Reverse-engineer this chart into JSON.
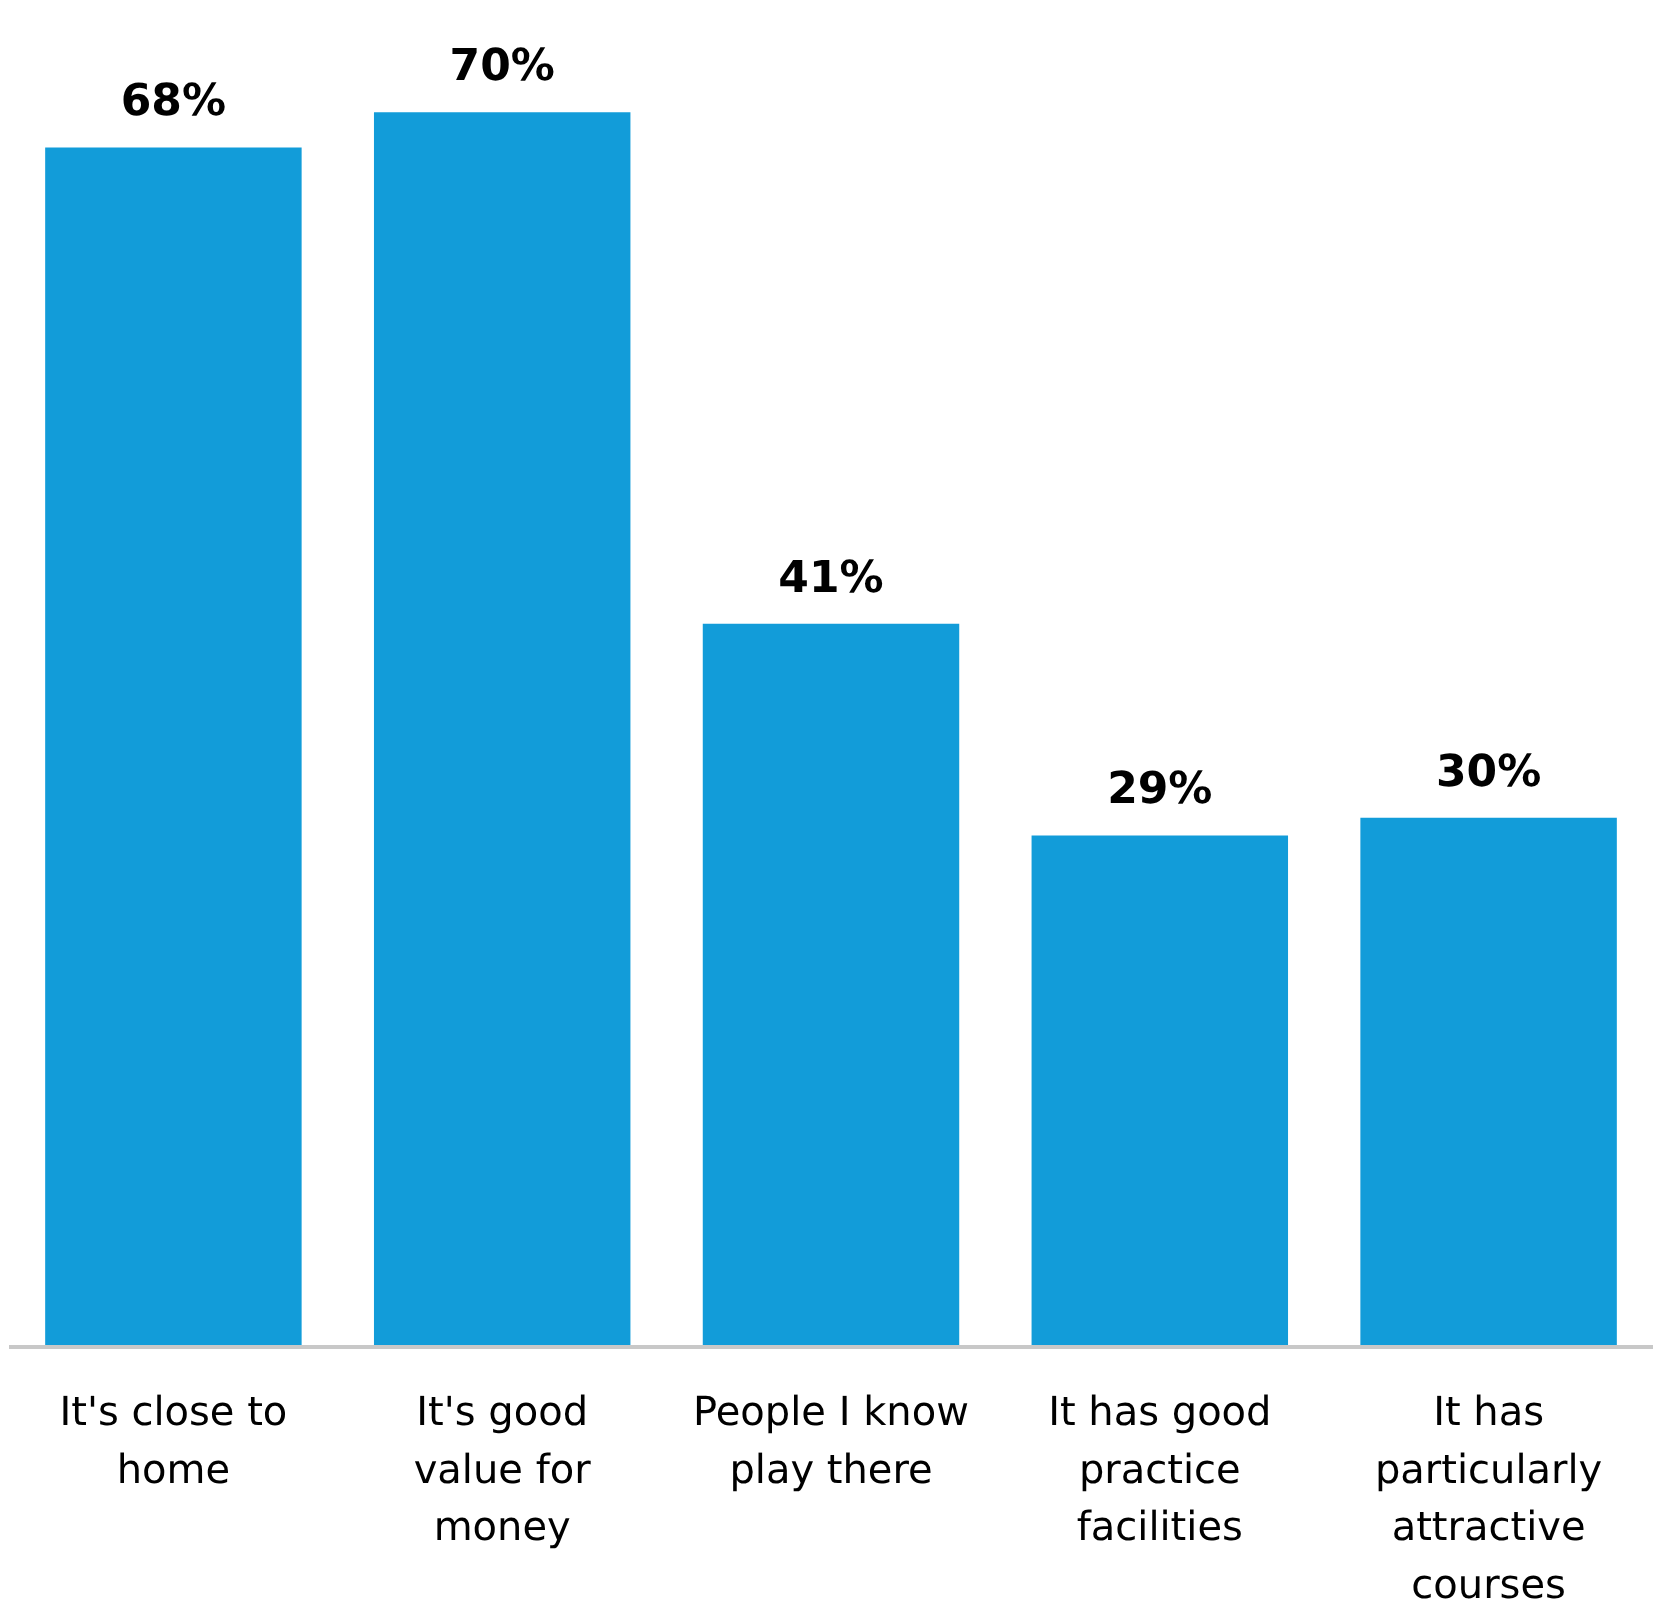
{
  "chart_data": {
    "type": "bar",
    "categories": [
      "It's close to home",
      "It's good value for money",
      "People I know play there",
      "It has good practice facilities",
      "It has particularly attractive courses"
    ],
    "values": [
      68,
      70,
      41,
      29,
      30
    ],
    "color": "#129cd9",
    "data_labels": true,
    "value_labels": [
      "68%",
      "70%",
      "41%",
      "29%",
      "30%"
    ]
  }
}
